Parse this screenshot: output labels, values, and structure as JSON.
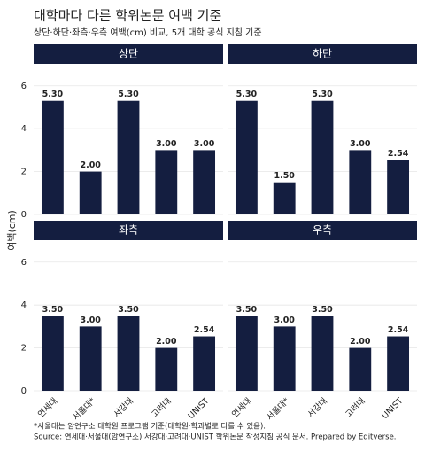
{
  "chart_data": {
    "type": "bar",
    "title": "대학마다 다른 학위논문 여백 기준",
    "subtitle": "상단·하단·좌측·우측 여백(cm) 비교, 5개 대학 공식 지침 기준",
    "y_label": "여백(cm)",
    "categories": [
      "연세대",
      "서울대*",
      "서강대",
      "고려대",
      "UNIST"
    ],
    "series": [
      {
        "name": "상단",
        "color": "#141e40",
        "values": [
          5.3,
          2,
          5.3,
          3,
          3
        ],
        "value_labels": [
          "5.30",
          "2.00",
          "5.30",
          "3.00",
          "3.00"
        ]
      },
      {
        "name": "하단",
        "color": "#141e40",
        "values": [
          5.3,
          1.5,
          5.3,
          3,
          2.54
        ],
        "value_labels": [
          "5.30",
          "1.50",
          "5.30",
          "3.00",
          "2.54"
        ]
      },
      {
        "name": "좌측",
        "color": "#141e40",
        "values": [
          3.5,
          3,
          3.5,
          2,
          2.54
        ],
        "value_labels": [
          "3.50",
          "3.00",
          "3.50",
          "2.00",
          "2.54"
        ]
      },
      {
        "name": "우측",
        "color": "#141e40",
        "values": [
          3.5,
          3,
          3.5,
          2,
          2.54
        ],
        "value_labels": [
          "3.50",
          "3.00",
          "3.50",
          "2.00",
          "2.54"
        ]
      }
    ],
    "ylim": [
      0,
      6.9
    ],
    "yticks": [
      0,
      2,
      4,
      6
    ],
    "grid": true,
    "notes": [
      "*서울대는 암연구소 대학원 프로그램 기준(대학원·학과별로 다를 수 있음).",
      "Source: 연세대·서울대(암연구소)·서강대·고려대·UNIST 학위논문 작성지침 공식 문서. Prepared by Editverse."
    ]
  }
}
